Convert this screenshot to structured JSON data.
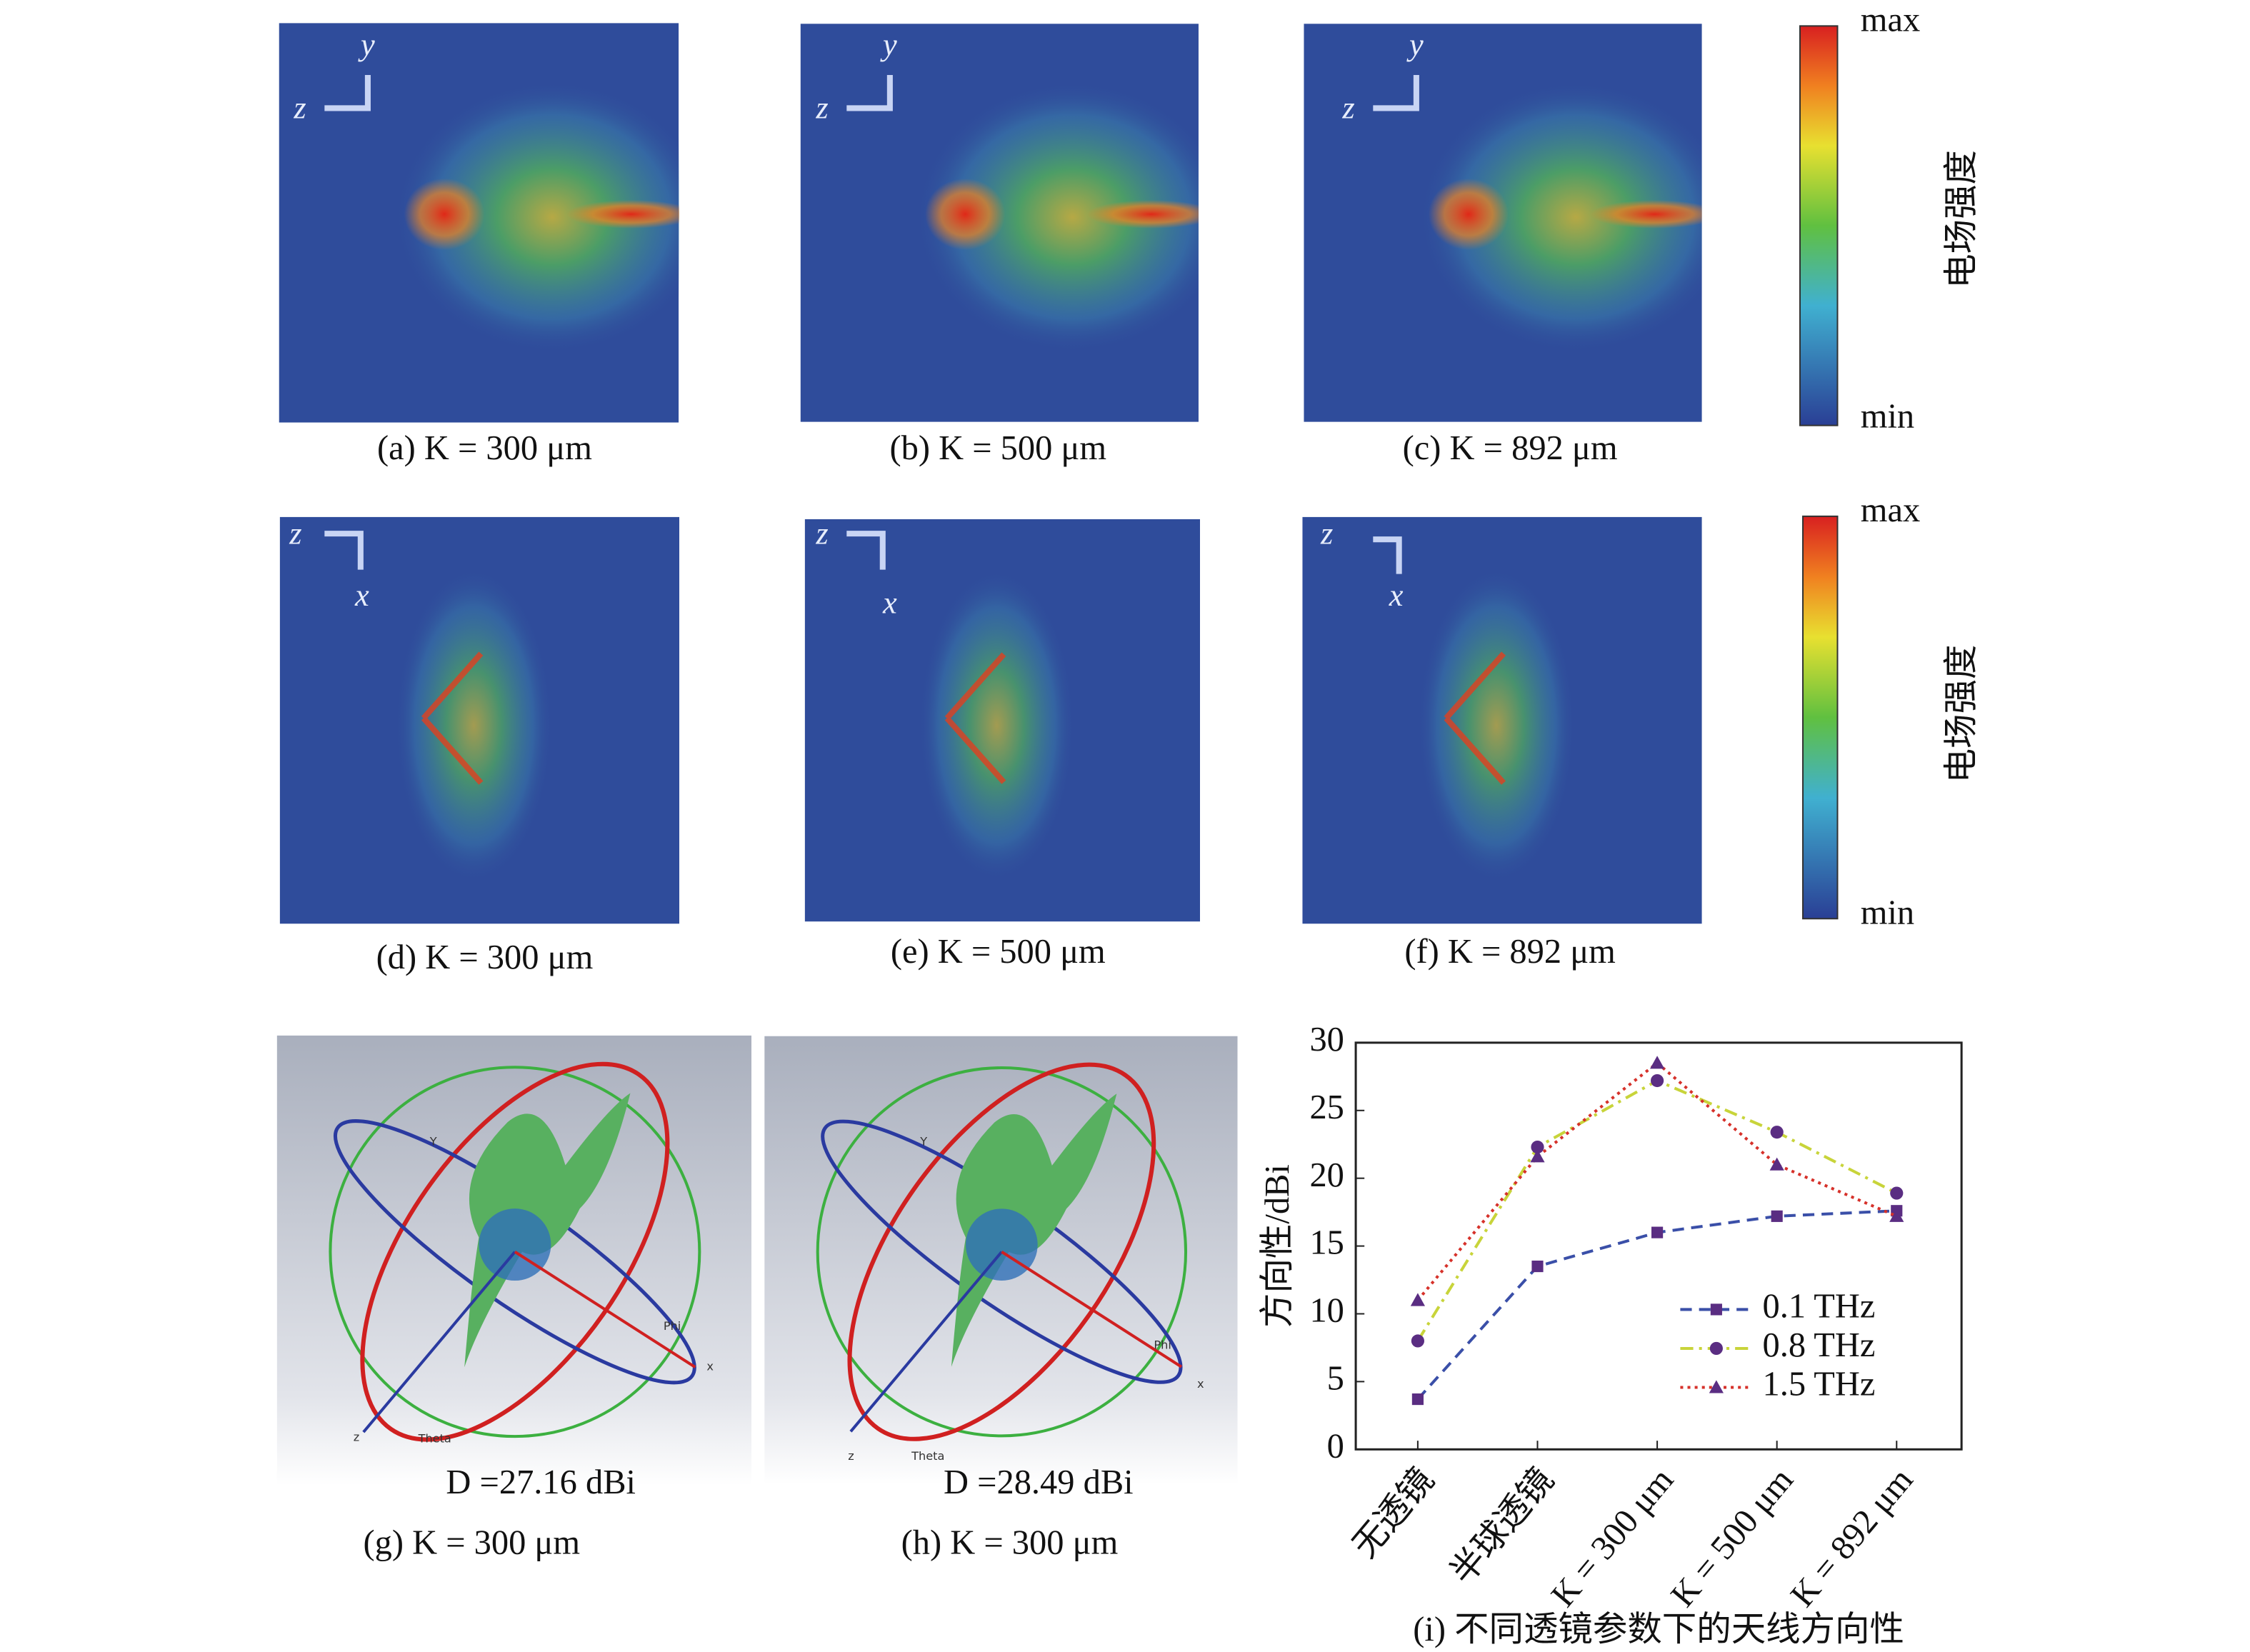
{
  "panels": [
    {
      "caption": "(a) K = 300 μm",
      "axes": [
        "y",
        "z"
      ]
    },
    {
      "caption": "(b) K = 500 μm",
      "axes": [
        "y",
        "z"
      ]
    },
    {
      "caption": "(c) K = 892 μm",
      "axes": [
        "y",
        "z"
      ]
    },
    {
      "caption": "(d) K = 300 μm",
      "axes": [
        "z",
        "x"
      ]
    },
    {
      "caption": "(e) K = 500 μm",
      "axes": [
        "z",
        "x"
      ]
    },
    {
      "caption": "(f) K = 892 μm",
      "axes": [
        "z",
        "x"
      ]
    }
  ],
  "colorbars": [
    {
      "max": "max",
      "min": "min",
      "label": "电场强度"
    },
    {
      "max": "max",
      "min": "min",
      "label": "电场强度"
    }
  ],
  "patterns": [
    {
      "caption": "(g) K = 300 μm",
      "directivity": "D =27.16 dBi",
      "labels": [
        "Y",
        "Phi",
        "x",
        "z",
        "Theta"
      ]
    },
    {
      "caption": "(h) K = 300 μm",
      "directivity": "D =28.49 dBi",
      "labels": [
        "Y",
        "Phi",
        "x",
        "z",
        "Theta"
      ]
    }
  ],
  "chart_data": {
    "type": "line",
    "title": "(i) 不同透镜参数下的天线方向性",
    "y_label": "方向性/dBi",
    "categories": [
      "无透镜",
      "半球透镜",
      "K = 300 μm",
      "K = 500 μm",
      "K = 892 μm"
    ],
    "series": [
      {
        "name": "0.1 THz",
        "color": "#3a4fa8",
        "dash": "dashed",
        "marker": "square",
        "values": [
          3.7,
          13.5,
          16,
          17.2,
          17.6
        ]
      },
      {
        "name": "0.8 THz",
        "color": "#c8d43a",
        "dash": "dashdot",
        "marker": "circle",
        "values": [
          8,
          22.3,
          27.2,
          23.4,
          18.9
        ]
      },
      {
        "name": "1.5 THz",
        "color": "#d6312a",
        "dash": "dotted",
        "marker": "triangle",
        "values": [
          11,
          21.6,
          28.5,
          21,
          17.2
        ]
      }
    ],
    "marker_color": "#5a2d82",
    "ylim": [
      0,
      30
    ],
    "yticks": [
      0,
      5,
      10,
      15,
      20,
      25,
      30
    ],
    "legend": "lower right"
  }
}
